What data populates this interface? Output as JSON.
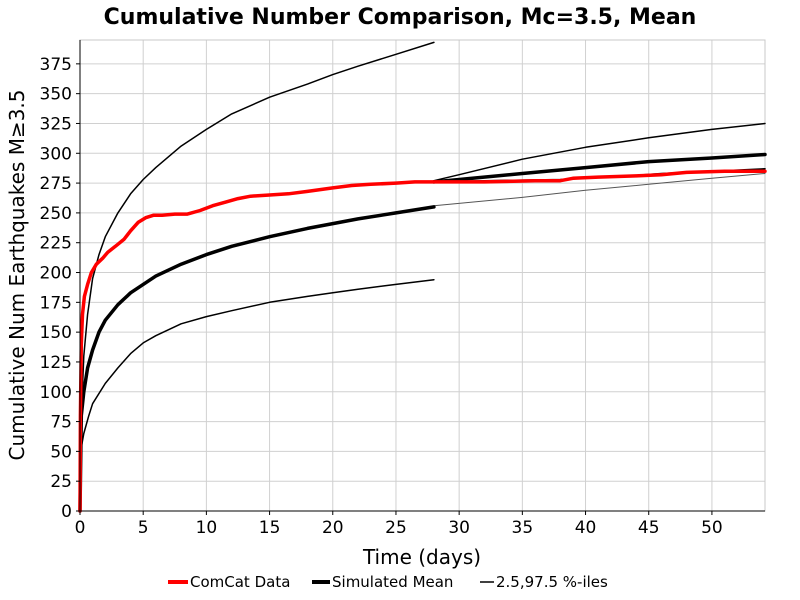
{
  "chart_data": {
    "type": "line",
    "title": "Cumulative Number Comparison, Mc=3.5, Mean",
    "xlabel": "Time (days)",
    "ylabel": "Cumulative Num Earthquakes M≥3.5",
    "xlim": [
      0,
      54.2
    ],
    "ylim": [
      0,
      395
    ],
    "x_ticks": [
      0,
      5,
      10,
      15,
      20,
      25,
      30,
      35,
      40,
      45,
      50
    ],
    "y_ticks": [
      0,
      25,
      50,
      75,
      100,
      125,
      150,
      175,
      200,
      225,
      250,
      275,
      300,
      325,
      350,
      375
    ],
    "grid": true,
    "legend_position": "bottom",
    "legend": [
      {
        "label": "ComCat Data",
        "color": "#ff0000",
        "style": "thick"
      },
      {
        "label": "Simulated Mean",
        "color": "#000000",
        "style": "thick"
      },
      {
        "label": "2.5,97.5 %-iles",
        "color": "#000000",
        "style": "thin"
      }
    ],
    "series": [
      {
        "name": "ComCat Data",
        "color": "#ff0000",
        "width": 3.5,
        "points": [
          [
            0,
            0
          ],
          [
            0.03,
            80
          ],
          [
            0.1,
            140
          ],
          [
            0.2,
            165
          ],
          [
            0.35,
            180
          ],
          [
            0.6,
            190
          ],
          [
            0.9,
            200
          ],
          [
            1.3,
            207
          ],
          [
            1.8,
            212
          ],
          [
            2.2,
            217
          ],
          [
            2.8,
            222
          ],
          [
            3.5,
            228
          ],
          [
            4.0,
            235
          ],
          [
            4.6,
            242
          ],
          [
            5.2,
            246
          ],
          [
            5.8,
            248
          ],
          [
            6.5,
            248
          ],
          [
            7.5,
            249
          ],
          [
            8.5,
            249
          ],
          [
            9.5,
            252
          ],
          [
            10.5,
            256
          ],
          [
            11.5,
            259
          ],
          [
            12.5,
            262
          ],
          [
            13.5,
            264
          ],
          [
            15,
            265
          ],
          [
            16.5,
            266
          ],
          [
            18,
            268
          ],
          [
            20,
            271
          ],
          [
            21.5,
            273
          ],
          [
            23,
            274
          ],
          [
            25,
            275
          ],
          [
            26.5,
            276
          ],
          [
            28,
            276
          ],
          [
            32,
            276
          ],
          [
            36,
            277
          ],
          [
            38,
            277
          ],
          [
            39,
            279
          ],
          [
            41,
            280
          ],
          [
            44,
            281
          ],
          [
            46,
            282
          ],
          [
            48,
            284
          ],
          [
            51,
            285
          ],
          [
            54.2,
            285
          ]
        ]
      },
      {
        "name": "Simulated Mean",
        "color": "#000000",
        "width": 3.5,
        "points": [
          [
            0,
            0
          ],
          [
            0.1,
            80
          ],
          [
            0.3,
            100
          ],
          [
            0.6,
            120
          ],
          [
            1,
            135
          ],
          [
            1.5,
            150
          ],
          [
            2,
            160
          ],
          [
            3,
            173
          ],
          [
            4,
            183
          ],
          [
            5,
            190
          ],
          [
            6,
            197
          ],
          [
            8,
            207
          ],
          [
            10,
            215
          ],
          [
            12,
            222
          ],
          [
            15,
            230
          ],
          [
            18,
            237
          ],
          [
            20,
            241
          ],
          [
            22,
            245
          ],
          [
            25,
            250
          ],
          [
            28,
            255
          ]
        ]
      },
      {
        "name": "Simulated Mean",
        "color": "#000000",
        "width": 3.5,
        "points": [
          [
            28,
            276
          ],
          [
            30,
            278
          ],
          [
            35,
            283
          ],
          [
            40,
            288
          ],
          [
            45,
            293
          ],
          [
            50,
            296
          ],
          [
            54.2,
            299
          ]
        ]
      },
      {
        "name": "2.5 %-ile",
        "color": "#000000",
        "width": 1.5,
        "points": [
          [
            0,
            0
          ],
          [
            0.05,
            50
          ],
          [
            0.3,
            65
          ],
          [
            0.7,
            80
          ],
          [
            1,
            90
          ],
          [
            2,
            107
          ],
          [
            3,
            120
          ],
          [
            4,
            132
          ],
          [
            5,
            141
          ],
          [
            6,
            147
          ],
          [
            8,
            157
          ],
          [
            10,
            163
          ],
          [
            12,
            168
          ],
          [
            15,
            175
          ],
          [
            18,
            180
          ],
          [
            20,
            183
          ],
          [
            22,
            186
          ],
          [
            25,
            190
          ],
          [
            28,
            194
          ]
        ]
      },
      {
        "name": "2.5 %-ile",
        "color": "#555555",
        "width": 1,
        "points": [
          [
            28,
            256
          ],
          [
            35,
            263
          ],
          [
            40,
            269
          ],
          [
            45,
            274
          ],
          [
            50,
            279
          ],
          [
            54.2,
            283
          ]
        ]
      },
      {
        "name": "97.5 %-ile",
        "color": "#000000",
        "width": 1.5,
        "points": [
          [
            0,
            0
          ],
          [
            0.1,
            80
          ],
          [
            0.3,
            130
          ],
          [
            0.6,
            165
          ],
          [
            1,
            195
          ],
          [
            1.5,
            215
          ],
          [
            2,
            230
          ],
          [
            3,
            250
          ],
          [
            4,
            266
          ],
          [
            5,
            278
          ],
          [
            6,
            288
          ],
          [
            8,
            306
          ],
          [
            10,
            320
          ],
          [
            12,
            333
          ],
          [
            15,
            347
          ],
          [
            18,
            358
          ],
          [
            20,
            366
          ],
          [
            22,
            373
          ],
          [
            25,
            383
          ],
          [
            28,
            393
          ]
        ]
      },
      {
        "name": "97.5 %-ile",
        "color": "#000000",
        "width": 1.5,
        "points": [
          [
            28,
            277
          ],
          [
            30,
            282
          ],
          [
            35,
            295
          ],
          [
            40,
            305
          ],
          [
            45,
            313
          ],
          [
            50,
            320
          ],
          [
            54.2,
            325
          ]
        ]
      },
      {
        "name": "97.5 %-ile",
        "color": "#000000",
        "width": 1.5,
        "points": [
          [
            28,
            276
          ],
          [
            32,
            277
          ],
          [
            38,
            278
          ],
          [
            42,
            280
          ],
          [
            46,
            283
          ],
          [
            50,
            285
          ],
          [
            54.2,
            287
          ]
        ]
      }
    ]
  }
}
